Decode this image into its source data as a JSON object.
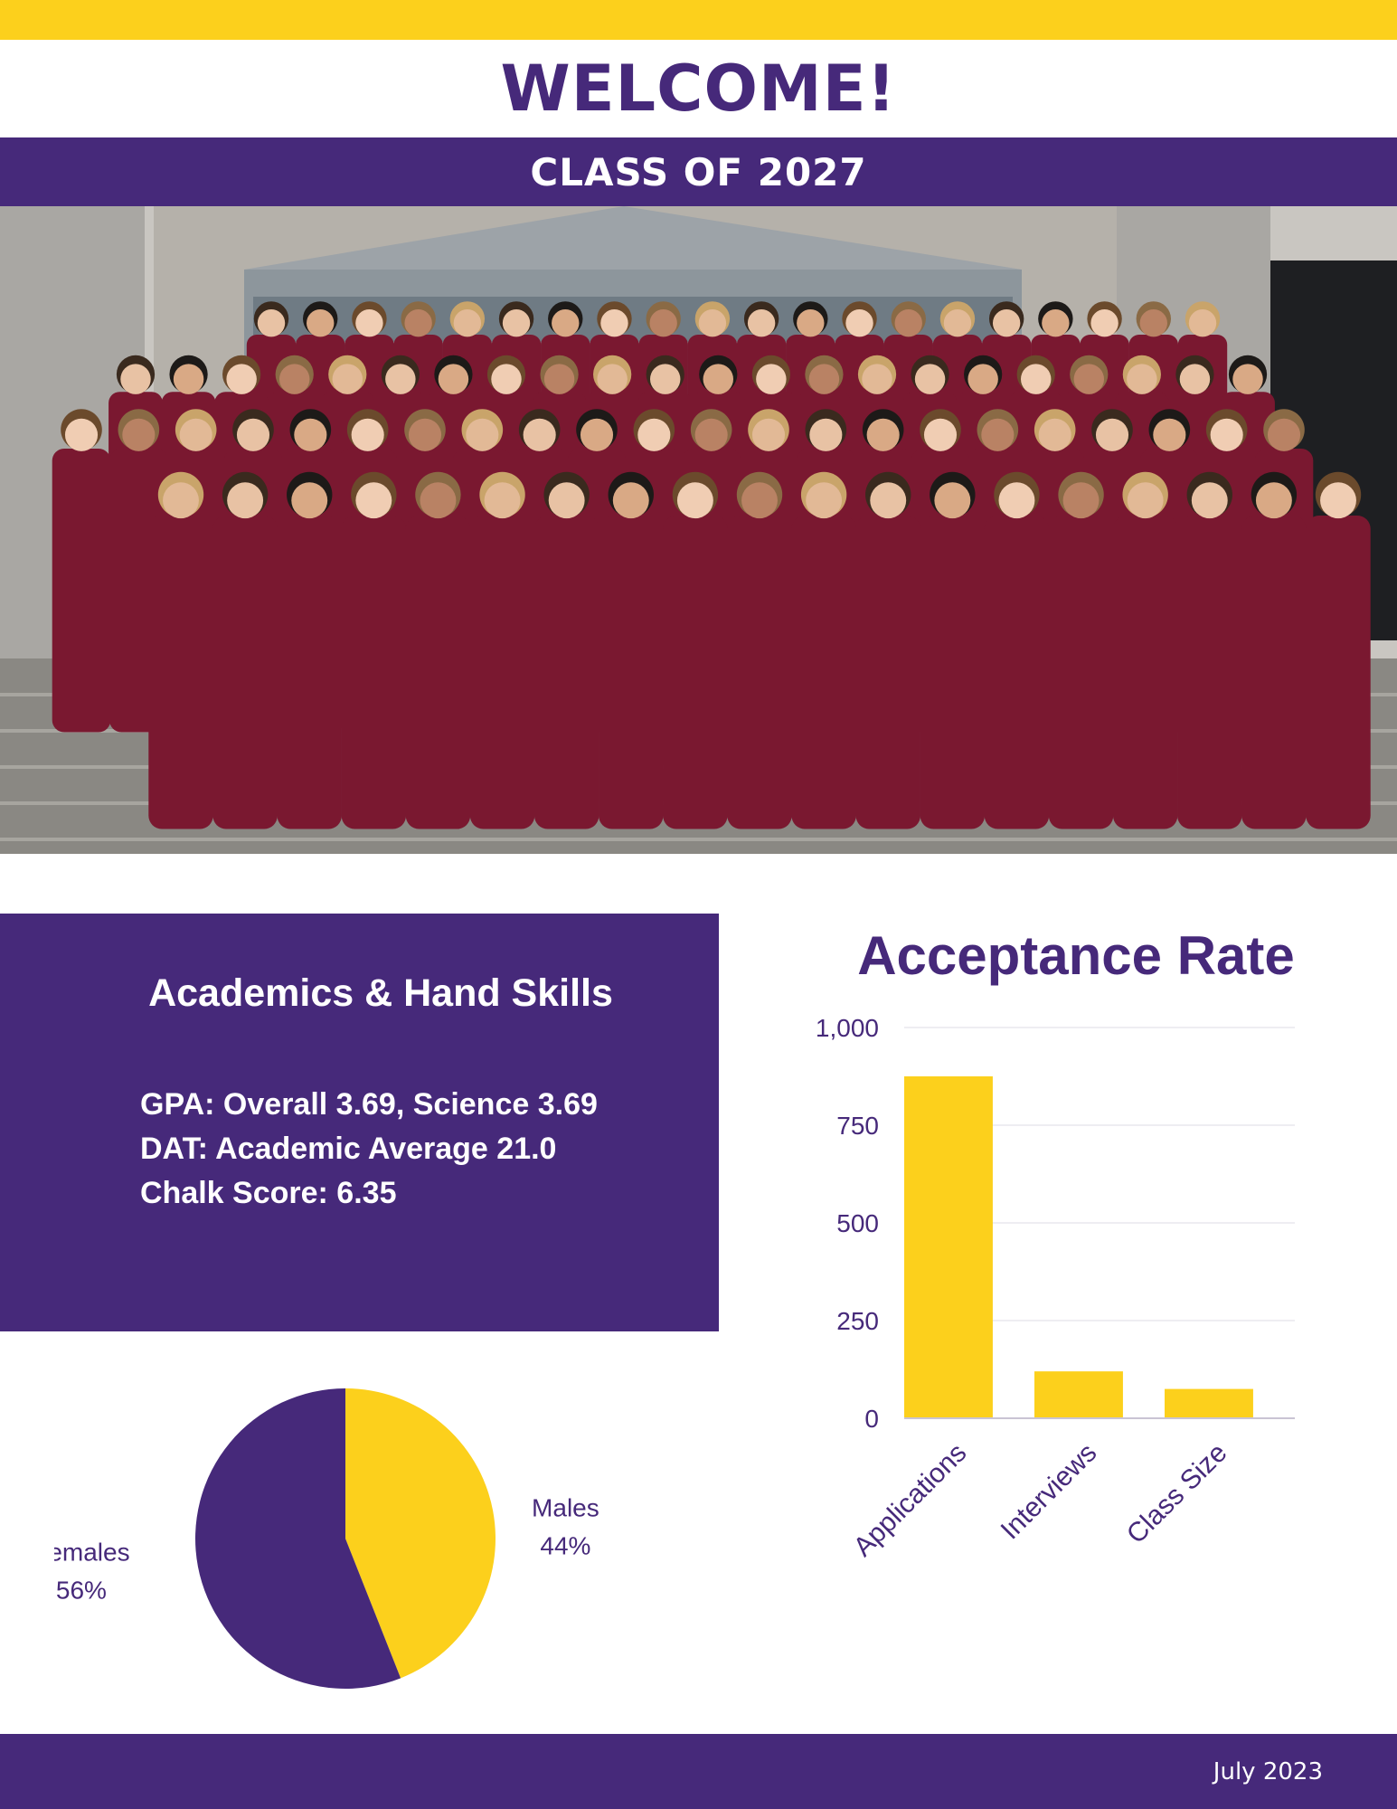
{
  "header": {
    "welcome": "WELCOME!",
    "class_of": "CLASS OF 2027"
  },
  "photo": {
    "content": "group-photo"
  },
  "academics": {
    "title": "Academics & Hand Skills",
    "lines": [
      "GPA: Overall 3.69, Science 3.69",
      "DAT: Academic Average 21.0",
      "Chalk Score: 6.35"
    ]
  },
  "footer": {
    "date": "July 2023"
  },
  "colors": {
    "purple": "#46297a",
    "gold": "#fcd01c",
    "maroon": "#7a1830"
  },
  "chart_data": [
    {
      "type": "bar",
      "title": "Acceptance Rate",
      "categories": [
        "Applications",
        "Interviews",
        "Class Size"
      ],
      "values": [
        875,
        120,
        75
      ],
      "ylim": [
        0,
        1000
      ],
      "yticks": [
        0,
        250,
        500,
        750,
        1000
      ],
      "ytick_labels": [
        "0",
        "250",
        "500",
        "750",
        "1,000"
      ],
      "grid": true,
      "color": "#fcd01c"
    },
    {
      "type": "pie",
      "slices": [
        {
          "label": "Males",
          "value": 44,
          "value_label": "44%",
          "color": "#fcd01c"
        },
        {
          "label": "Females",
          "value": 56,
          "value_label": "56%",
          "color": "#46297a"
        }
      ]
    }
  ]
}
